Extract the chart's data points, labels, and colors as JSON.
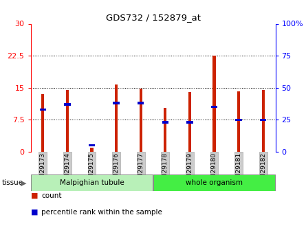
{
  "title": "GDS732 / 152879_at",
  "categories": [
    "GSM29173",
    "GSM29174",
    "GSM29175",
    "GSM29176",
    "GSM29177",
    "GSM29178",
    "GSM29179",
    "GSM29180",
    "GSM29181",
    "GSM29182"
  ],
  "count_values": [
    13.5,
    14.5,
    1.0,
    15.8,
    14.8,
    10.2,
    14.0,
    22.5,
    14.2,
    14.5
  ],
  "percentile_values": [
    33,
    37,
    5,
    38,
    38,
    23,
    23,
    35,
    25,
    25
  ],
  "tissue_groups": [
    {
      "label": "Malpighian tubule",
      "indices": [
        0,
        1,
        2,
        3,
        4
      ],
      "color": "#44ee44"
    },
    {
      "label": "whole organism",
      "indices": [
        5,
        6,
        7,
        8,
        9
      ],
      "color": "#44ee44"
    }
  ],
  "left_ylim": [
    0,
    30
  ],
  "right_ylim": [
    0,
    100
  ],
  "left_yticks": [
    0,
    7.5,
    15,
    22.5,
    30
  ],
  "right_yticks": [
    0,
    25,
    50,
    75,
    100
  ],
  "right_yticklabels": [
    "0",
    "25",
    "50",
    "75",
    "100%"
  ],
  "bar_color": "#CC2200",
  "marker_color": "#0000CC",
  "bar_width": 0.12,
  "grid_lines": [
    7.5,
    15,
    22.5
  ],
  "background_color": "#ffffff",
  "tick_bg_color": "#cccccc",
  "tissue_color_1": "#b8f0b8",
  "tissue_color_2": "#44ee44"
}
